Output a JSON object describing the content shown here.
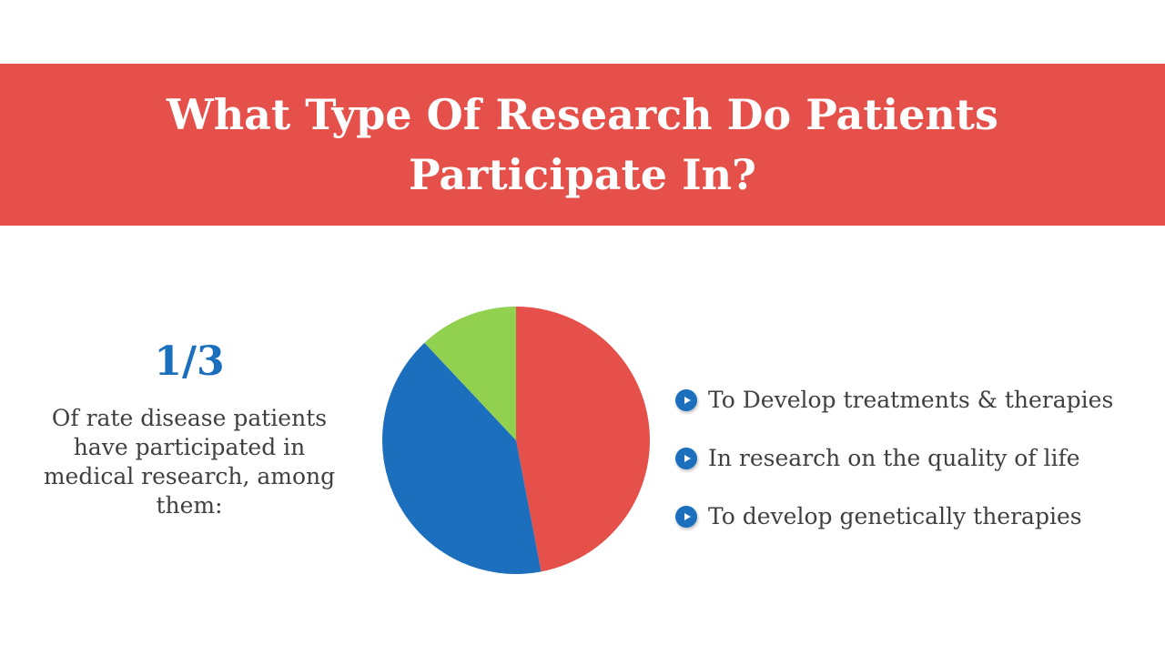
{
  "title": "What Type Of Research Do Patients Participate In?",
  "stat": {
    "value": "1/3",
    "text": "Of rate disease patients have participated in medical research, among them:"
  },
  "legend": [
    {
      "label": "To Develop treatments & therapies",
      "icon": "play-bullet-icon"
    },
    {
      "label": "In research on the quality of life",
      "icon": "play-bullet-icon"
    },
    {
      "label": "To develop genetically therapies",
      "icon": "play-bullet-icon"
    }
  ],
  "colors": {
    "banner": "#e5504a",
    "accent": "#1c6fbd",
    "text": "#404040"
  },
  "chart_data": {
    "type": "pie",
    "title": "",
    "start_angle": "12 o'clock",
    "direction": "clockwise",
    "slices": [
      {
        "value": 47,
        "color": "#e5504a"
      },
      {
        "value": 41,
        "color": "#1c6fbd"
      },
      {
        "value": 12,
        "color": "#92d050"
      }
    ]
  }
}
